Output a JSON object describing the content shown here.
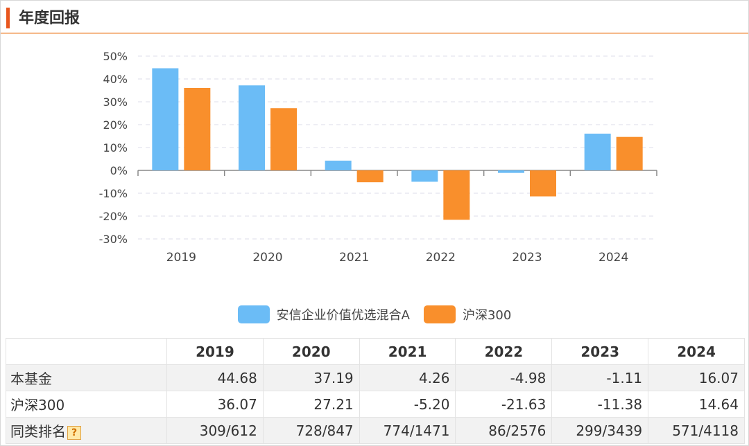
{
  "header": {
    "title": "年度回报"
  },
  "chart_data": {
    "type": "bar",
    "categories": [
      "2019",
      "2020",
      "2021",
      "2022",
      "2023",
      "2024"
    ],
    "series": [
      {
        "name": "安信企业价值优选混合A",
        "values": [
          44.68,
          37.19,
          4.26,
          -4.98,
          -1.11,
          16.07
        ],
        "color": "#6bbcf6"
      },
      {
        "name": "沪深300",
        "values": [
          36.07,
          27.21,
          -5.2,
          -21.63,
          -11.38,
          14.64
        ],
        "color": "#f98f2c"
      }
    ],
    "ylim": [
      -30,
      50
    ],
    "yticks": [
      50,
      40,
      30,
      20,
      10,
      0,
      -10,
      -20,
      -30
    ],
    "ytick_labels": [
      "50%",
      "40%",
      "30%",
      "20%",
      "10%",
      "0%",
      "-10%",
      "-20%",
      "-30%"
    ],
    "grid": true,
    "legend_position": "bottom-center"
  },
  "table": {
    "headers": [
      "",
      "2019",
      "2020",
      "2021",
      "2022",
      "2023",
      "2024"
    ],
    "rows": [
      {
        "label": "本基金",
        "values": [
          "44.68",
          "37.19",
          "4.26",
          "-4.98",
          "-1.11",
          "16.07"
        ]
      },
      {
        "label": "沪深300",
        "values": [
          "36.07",
          "27.21",
          "-5.20",
          "-21.63",
          "-11.38",
          "14.64"
        ]
      },
      {
        "label": "同类排名",
        "values": [
          "309/612",
          "728/847",
          "774/1471",
          "86/2576",
          "299/3439",
          "571/4118"
        ],
        "icon": "question-icon",
        "icon_text": "?"
      }
    ]
  }
}
